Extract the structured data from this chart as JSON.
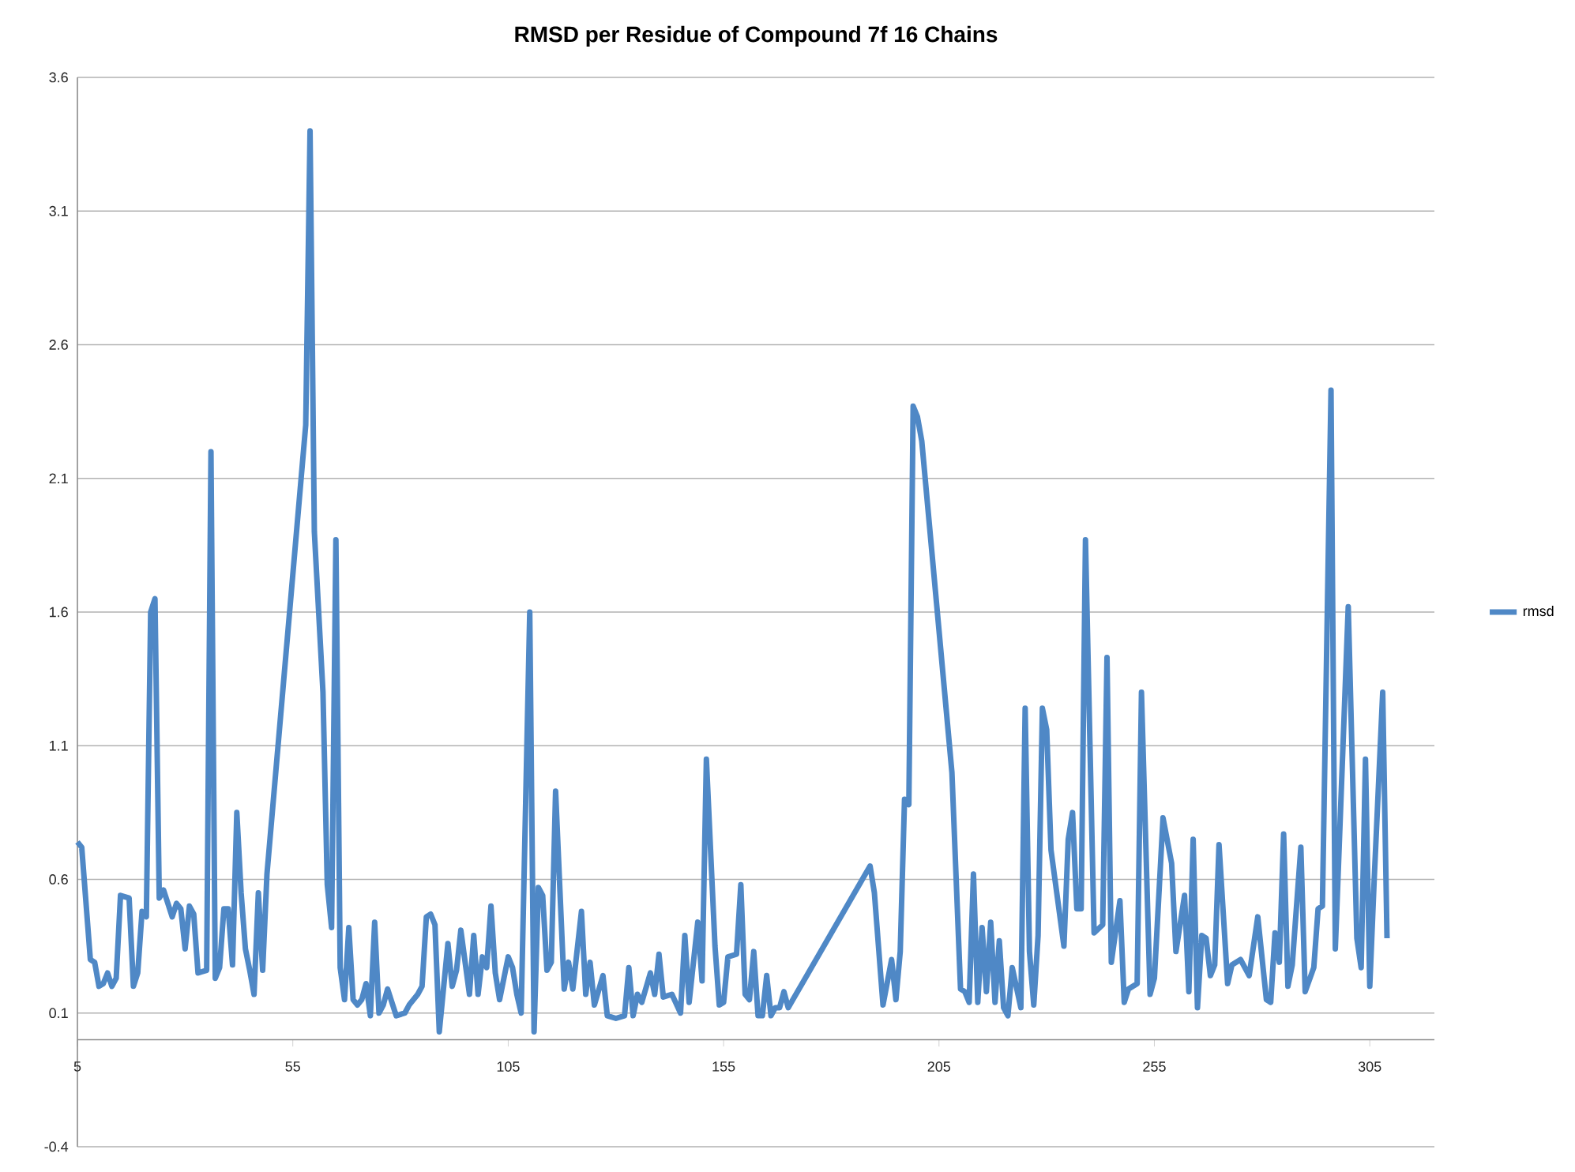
{
  "chart_data": {
    "type": "line",
    "title": "RMSD per Residue of Compound 7f 16 Chains",
    "xlim": [
      5,
      320
    ],
    "xticks": [
      5,
      55,
      105,
      155,
      205,
      255,
      305
    ],
    "ylim": [
      -0.4,
      3.6
    ],
    "yticks": [
      -0.4,
      0.1,
      0.6,
      1.1,
      1.6,
      2.1,
      2.6,
      3.1,
      3.6
    ],
    "grid": "y",
    "legend": "right",
    "x": [
      5,
      6,
      8,
      9,
      10,
      11,
      12,
      13,
      14,
      15,
      17,
      18,
      19,
      20,
      21,
      22,
      23,
      24,
      25,
      27,
      28,
      29,
      30,
      31,
      32,
      33,
      35,
      36,
      37,
      38,
      39,
      40,
      41,
      42,
      43,
      44,
      45,
      46,
      47,
      48,
      49,
      58,
      59,
      60,
      62,
      63,
      64,
      65,
      66,
      67,
      68,
      69,
      70,
      71,
      72,
      73,
      74,
      75,
      76,
      77,
      79,
      81,
      82,
      84,
      85,
      86,
      87,
      88,
      89,
      91,
      92,
      93,
      94,
      96,
      97,
      98,
      99,
      100,
      101,
      102,
      103,
      105,
      106,
      107,
      108,
      110,
      111,
      112,
      113,
      114,
      115,
      116,
      118,
      119,
      120,
      122,
      123,
      124,
      125,
      127,
      128,
      130,
      132,
      133,
      134,
      135,
      136,
      138,
      139,
      140,
      141,
      143,
      145,
      146,
      147,
      149,
      150,
      151,
      153,
      154,
      155,
      156,
      158,
      159,
      160,
      161,
      162,
      163,
      164,
      165,
      166,
      167,
      168,
      169,
      170,
      189,
      190,
      192,
      194,
      195,
      196,
      197,
      198,
      199,
      200,
      201,
      208,
      210,
      211,
      212,
      213,
      214,
      215,
      216,
      217,
      218,
      219,
      220,
      221,
      222,
      224,
      225,
      226,
      227,
      228,
      229,
      230,
      231,
      234,
      235,
      236,
      237,
      238,
      239,
      241,
      243,
      244,
      245,
      247,
      248,
      249,
      251,
      252,
      254,
      255,
      257,
      259,
      260,
      262,
      263,
      264,
      265,
      266,
      267,
      268,
      269,
      270,
      272,
      273,
      275,
      277,
      279,
      281,
      282,
      283,
      284,
      285,
      286,
      287,
      289,
      290,
      292,
      293,
      294,
      296,
      297,
      300,
      302,
      303,
      304,
      305,
      306,
      308,
      309
    ],
    "series": [
      {
        "name": "rmsd",
        "color": "#4f88c6",
        "values": [
          0.74,
          0.72,
          0.3,
          0.29,
          0.2,
          0.21,
          0.25,
          0.2,
          0.23,
          0.54,
          0.53,
          0.2,
          0.25,
          0.48,
          0.46,
          1.6,
          1.65,
          0.53,
          0.56,
          0.46,
          0.51,
          0.49,
          0.34,
          0.5,
          0.47,
          0.25,
          0.26,
          2.2,
          0.23,
          0.27,
          0.49,
          0.49,
          0.28,
          0.85,
          0.55,
          0.34,
          0.26,
          0.17,
          0.55,
          0.26,
          0.62,
          2.3,
          3.4,
          1.9,
          1.3,
          0.58,
          0.42,
          1.87,
          0.27,
          0.15,
          0.42,
          0.15,
          0.13,
          0.15,
          0.21,
          0.09,
          0.44,
          0.1,
          0.13,
          0.19,
          0.09,
          0.1,
          0.13,
          0.17,
          0.2,
          0.46,
          0.47,
          0.43,
          0.03,
          0.36,
          0.2,
          0.26,
          0.41,
          0.17,
          0.39,
          0.17,
          0.31,
          0.27,
          0.5,
          0.25,
          0.15,
          0.31,
          0.27,
          0.17,
          0.1,
          1.6,
          0.03,
          0.57,
          0.54,
          0.26,
          0.29,
          0.93,
          0.19,
          0.29,
          0.19,
          0.48,
          0.17,
          0.29,
          0.13,
          0.24,
          0.09,
          0.08,
          0.09,
          0.27,
          0.09,
          0.17,
          0.14,
          0.25,
          0.17,
          0.32,
          0.16,
          0.17,
          0.1,
          0.39,
          0.14,
          0.44,
          0.22,
          1.05,
          0.35,
          0.13,
          0.14,
          0.31,
          0.32,
          0.58,
          0.17,
          0.15,
          0.33,
          0.09,
          0.09,
          0.24,
          0.09,
          0.12,
          0.12,
          0.18,
          0.12,
          0.65,
          0.55,
          0.13,
          0.3,
          0.15,
          0.33,
          0.9,
          0.88,
          2.37,
          2.33,
          2.24,
          1.0,
          0.19,
          0.18,
          0.14,
          0.62,
          0.14,
          0.42,
          0.18,
          0.44,
          0.14,
          0.37,
          0.12,
          0.09,
          0.27,
          0.12,
          1.24,
          0.33,
          0.13,
          0.39,
          1.24,
          1.16,
          0.71,
          0.35,
          0.75,
          0.85,
          0.49,
          0.49,
          1.87,
          0.4,
          0.43,
          1.43,
          0.29,
          0.52,
          0.14,
          0.19,
          0.21,
          1.3,
          0.17,
          0.23,
          0.83,
          0.66,
          0.33,
          0.54,
          0.18,
          0.75,
          0.12,
          0.39,
          0.38,
          0.24,
          0.28,
          0.73,
          0.21,
          0.28,
          0.3,
          0.24,
          0.46,
          0.15,
          0.14,
          0.4,
          0.29,
          0.77,
          0.2,
          0.28,
          0.72,
          0.18,
          0.27,
          0.49,
          0.5,
          2.43,
          0.34,
          1.62,
          0.38,
          0.27,
          1.05,
          0.2,
          0.59,
          1.3,
          0.38
        ]
      }
    ]
  }
}
